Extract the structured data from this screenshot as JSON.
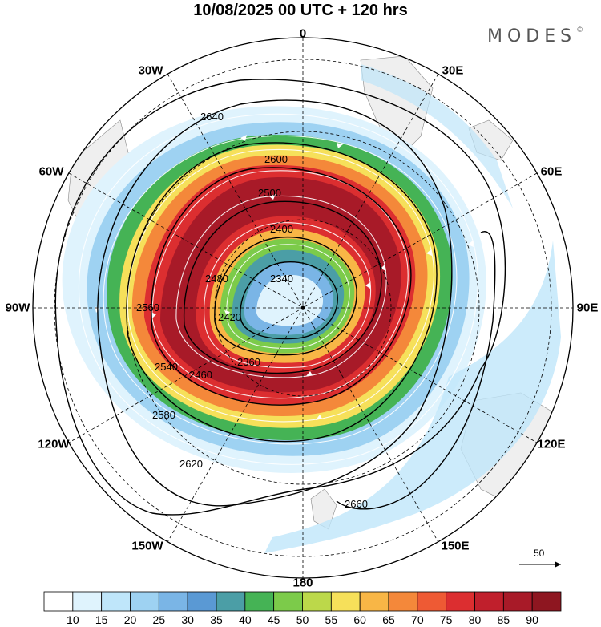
{
  "title": "10/08/2025  00 UTC  + 120 hrs",
  "brand": {
    "text": "MODES",
    "mark": "©"
  },
  "longitude_labels": [
    "0",
    "30E",
    "60E",
    "90E",
    "120E",
    "150E",
    "180",
    "150W",
    "120W",
    "90W",
    "60W",
    "30W"
  ],
  "contour_labels": [
    "2340",
    "2360",
    "2400",
    "2420",
    "2460",
    "2480",
    "2500",
    "2540",
    "2560",
    "2580",
    "2600",
    "2620",
    "2640",
    "2660"
  ],
  "vector_scale": {
    "label": "50"
  },
  "colorbar": {
    "colors": [
      "#ffffff",
      "#dff3fd",
      "#bfe6fa",
      "#9ed2f2",
      "#7ab5e6",
      "#5a99d4",
      "#4b9ea6",
      "#45b355",
      "#7ccb4a",
      "#bcd84a",
      "#f6e05a",
      "#f8b646",
      "#f4883a",
      "#ee5a34",
      "#dc2e30",
      "#c01f2c",
      "#a81a28",
      "#8e1620"
    ],
    "labels": [
      "10",
      "15",
      "20",
      "25",
      "30",
      "35",
      "40",
      "45",
      "50",
      "55",
      "60",
      "65",
      "70",
      "75",
      "80",
      "85",
      "90"
    ]
  },
  "colors": {
    "land": "#efefef",
    "outline": "#000000",
    "streamline": "#ffffff"
  }
}
